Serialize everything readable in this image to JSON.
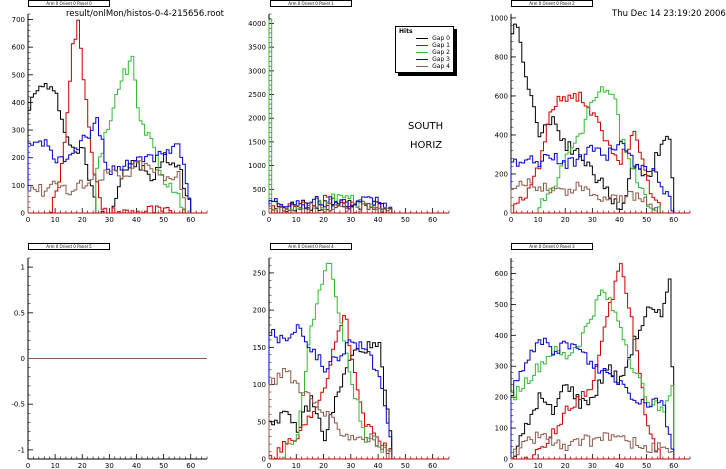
{
  "header": {
    "filename": "result/onlMon/histos-0-4-215656.root",
    "datetime": "Thu Dec 14 23:19:20 2006"
  },
  "colors": {
    "Gap 0": "#000000",
    "Gap 1": "#cc0000",
    "Gap 2": "#33bb33",
    "Gap 3": "#0000cc",
    "Gap 4": "#8b5a4a",
    "axis": "#000000",
    "xaxis_line": "#cc0000"
  },
  "legend": {
    "title": "Hits",
    "entries": [
      "Gap 0",
      "Gap 1",
      "Gap 2",
      "Gap 3",
      "Gap 4"
    ]
  },
  "chart_data": [
    {
      "type": "line",
      "pad_title": "Arm 0 Orient 0 Panel 0",
      "title": "",
      "xlabel": "",
      "ylabel": "",
      "xlim": [
        0,
        66
      ],
      "ylim": [
        0,
        720
      ],
      "xticks": [
        0,
        10,
        20,
        30,
        40,
        50,
        60
      ],
      "yticks": [
        0,
        100,
        200,
        300,
        400,
        500,
        600,
        700
      ],
      "series": [
        {
          "name": "Gap 0",
          "x": [
            0,
            5,
            10,
            15,
            20,
            25,
            30,
            35,
            40,
            45,
            50,
            55,
            60
          ],
          "y": [
            390,
            470,
            420,
            240,
            220,
            0,
            0,
            160,
            180,
            120,
            200,
            170,
            20
          ]
        },
        {
          "name": "Gap 1",
          "x": [
            8,
            12,
            16,
            18,
            20,
            24,
            27,
            30,
            35,
            40,
            45,
            50,
            55,
            60
          ],
          "y": [
            10,
            160,
            600,
            680,
            500,
            150,
            0,
            0,
            0,
            0,
            10,
            0,
            0,
            0
          ]
        },
        {
          "name": "Gap 2",
          "x": [
            25,
            30,
            35,
            38,
            40,
            45,
            50,
            55,
            58,
            60
          ],
          "y": [
            160,
            350,
            500,
            550,
            380,
            250,
            120,
            50,
            20,
            0
          ]
        },
        {
          "name": "Gap 3",
          "x": [
            0,
            5,
            10,
            15,
            20,
            25,
            28,
            30,
            35,
            40,
            45,
            50,
            55,
            60
          ],
          "y": [
            240,
            260,
            200,
            190,
            260,
            340,
            200,
            150,
            160,
            210,
            200,
            220,
            260,
            0
          ]
        },
        {
          "name": "Gap 4",
          "x": [
            0,
            5,
            10,
            15,
            20,
            25,
            30,
            35,
            40,
            45,
            50,
            55,
            58
          ],
          "y": [
            100,
            80,
            120,
            70,
            110,
            130,
            150,
            120,
            180,
            160,
            120,
            150,
            0
          ]
        }
      ]
    },
    {
      "type": "line",
      "pad_title": "Arm 0 Orient 0 Panel 1",
      "title": "",
      "xlabel": "",
      "ylabel": "",
      "xlim": [
        0,
        66
      ],
      "ylim": [
        0,
        4200
      ],
      "xticks": [
        0,
        10,
        20,
        30,
        40,
        50,
        60
      ],
      "yticks": [
        0,
        500,
        1000,
        1500,
        2000,
        2500,
        3000,
        3500,
        4000
      ],
      "annotations": [
        "SOUTH",
        "HORIZ"
      ],
      "series": [
        {
          "name": "Gap 0",
          "x": [
            0,
            5,
            10,
            15,
            20,
            25,
            30,
            35,
            40,
            45
          ],
          "y": [
            150,
            150,
            160,
            140,
            150,
            140,
            160,
            150,
            140,
            0
          ]
        },
        {
          "name": "Gap 1",
          "x": [
            0,
            5,
            10,
            15,
            20,
            25,
            30,
            35,
            40,
            45
          ],
          "y": [
            80,
            90,
            150,
            200,
            250,
            220,
            180,
            140,
            100,
            0
          ]
        },
        {
          "name": "Gap 2",
          "x": [
            0,
            1,
            5,
            10,
            15,
            20,
            25,
            30,
            35,
            40,
            45
          ],
          "y": [
            4100,
            30,
            40,
            60,
            100,
            200,
            330,
            250,
            120,
            60,
            0
          ]
        },
        {
          "name": "Gap 3",
          "x": [
            0,
            5,
            10,
            15,
            20,
            25,
            30,
            35,
            40,
            45
          ],
          "y": [
            220,
            200,
            210,
            220,
            240,
            230,
            220,
            240,
            250,
            0
          ]
        },
        {
          "name": "Gap 4",
          "x": [
            0,
            5,
            10,
            15,
            20,
            25,
            30,
            35,
            40,
            45
          ],
          "y": [
            50,
            60,
            80,
            100,
            120,
            110,
            100,
            90,
            70,
            0
          ]
        }
      ]
    },
    {
      "type": "line",
      "pad_title": "Arm 0 Orient 0 Panel 2",
      "title": "",
      "xlabel": "",
      "ylabel": "",
      "xlim": [
        0,
        66
      ],
      "ylim": [
        0,
        1020
      ],
      "xticks": [
        0,
        10,
        20,
        30,
        40,
        50,
        60
      ],
      "yticks": [
        0,
        200,
        400,
        600,
        800,
        1000
      ],
      "series": [
        {
          "name": "Gap 0",
          "x": [
            0,
            2,
            5,
            10,
            15,
            20,
            25,
            30,
            35,
            40,
            45,
            50,
            55,
            58,
            60
          ],
          "y": [
            900,
            980,
            700,
            420,
            480,
            350,
            300,
            200,
            120,
            0,
            260,
            180,
            350,
            380,
            0
          ]
        },
        {
          "name": "Gap 1",
          "x": [
            0,
            5,
            10,
            15,
            20,
            25,
            30,
            35,
            40,
            45,
            50,
            55
          ],
          "y": [
            10,
            80,
            250,
            550,
            600,
            600,
            500,
            350,
            280,
            400,
            150,
            0
          ]
        },
        {
          "name": "Gap 2",
          "x": [
            10,
            15,
            20,
            25,
            30,
            35,
            38,
            40,
            45,
            50,
            55
          ],
          "y": [
            40,
            120,
            320,
            400,
            600,
            640,
            600,
            400,
            200,
            50,
            0
          ]
        },
        {
          "name": "Gap 3",
          "x": [
            0,
            5,
            10,
            15,
            20,
            25,
            30,
            35,
            40,
            45,
            50,
            55,
            60
          ],
          "y": [
            260,
            280,
            250,
            300,
            250,
            280,
            330,
            300,
            370,
            250,
            240,
            150,
            0
          ]
        },
        {
          "name": "Gap 4",
          "x": [
            0,
            5,
            10,
            15,
            20,
            25,
            30,
            35,
            40,
            45,
            50,
            55
          ],
          "y": [
            110,
            150,
            140,
            130,
            110,
            150,
            90,
            90,
            80,
            90,
            60,
            0
          ]
        }
      ]
    },
    {
      "type": "line",
      "pad_title": "Arm 0 Orient 0 Panel 5",
      "title": "",
      "xlabel": "",
      "ylabel": "",
      "xlim": [
        0,
        66
      ],
      "ylim": [
        -1.1,
        1.1
      ],
      "xticks": [
        0,
        10,
        20,
        30,
        40,
        50,
        60
      ],
      "yticks": [
        -1,
        -0.5,
        0,
        0.5,
        1
      ],
      "series": [
        {
          "name": "Gap 0",
          "x": [
            0,
            66
          ],
          "y": [
            0,
            0
          ]
        },
        {
          "name": "Gap 4",
          "x": [
            0,
            66
          ],
          "y": [
            0,
            0
          ]
        }
      ]
    },
    {
      "type": "line",
      "pad_title": "Arm 0 Orient 0 Panel 4",
      "title": "",
      "xlabel": "",
      "ylabel": "",
      "xlim": [
        0,
        66
      ],
      "ylim": [
        0,
        270
      ],
      "xticks": [
        0,
        10,
        20,
        30,
        40,
        50,
        60
      ],
      "yticks": [
        0,
        50,
        100,
        150,
        200,
        250
      ],
      "series": [
        {
          "name": "Gap 0",
          "x": [
            0,
            5,
            10,
            15,
            20,
            25,
            30,
            35,
            40,
            45
          ],
          "y": [
            50,
            60,
            40,
            80,
            30,
            90,
            140,
            150,
            150,
            0
          ]
        },
        {
          "name": "Gap 1",
          "x": [
            0,
            5,
            10,
            15,
            20,
            25,
            28,
            30,
            35,
            40,
            45
          ],
          "y": [
            0,
            20,
            30,
            60,
            100,
            180,
            190,
            130,
            50,
            30,
            0
          ]
        },
        {
          "name": "Gap 2",
          "x": [
            5,
            10,
            15,
            20,
            22,
            25,
            30,
            35,
            40,
            45
          ],
          "y": [
            10,
            30,
            180,
            250,
            260,
            200,
            100,
            30,
            20,
            0
          ]
        },
        {
          "name": "Gap 3",
          "x": [
            0,
            5,
            10,
            15,
            20,
            25,
            30,
            35,
            40,
            45
          ],
          "y": [
            170,
            160,
            180,
            150,
            120,
            140,
            160,
            150,
            110,
            0
          ]
        },
        {
          "name": "Gap 4",
          "x": [
            0,
            5,
            10,
            15,
            20,
            25,
            30,
            35,
            40,
            45
          ],
          "y": [
            100,
            120,
            100,
            80,
            60,
            40,
            30,
            30,
            20,
            0
          ]
        }
      ]
    },
    {
      "type": "line",
      "pad_title": "Arm 0 Orient 0 Panel 3",
      "title": "",
      "xlabel": "",
      "ylabel": "",
      "xlim": [
        0,
        66
      ],
      "ylim": [
        0,
        650
      ],
      "xticks": [
        0,
        10,
        20,
        30,
        40,
        50,
        60
      ],
      "yticks": [
        0,
        100,
        200,
        300,
        400,
        500,
        600
      ],
      "series": [
        {
          "name": "Gap 0",
          "x": [
            0,
            5,
            10,
            15,
            20,
            25,
            30,
            35,
            40,
            45,
            50,
            55,
            58,
            60
          ],
          "y": [
            0,
            100,
            200,
            150,
            250,
            180,
            200,
            300,
            250,
            380,
            480,
            460,
            600,
            0
          ]
        },
        {
          "name": "Gap 1",
          "x": [
            5,
            10,
            15,
            20,
            25,
            30,
            35,
            38,
            40,
            45,
            50,
            55
          ],
          "y": [
            0,
            20,
            80,
            160,
            200,
            250,
            450,
            560,
            640,
            400,
            100,
            0
          ]
        },
        {
          "name": "Gap 2",
          "x": [
            0,
            5,
            10,
            15,
            20,
            25,
            30,
            33,
            35,
            40,
            45,
            50,
            55,
            60
          ],
          "y": [
            200,
            250,
            300,
            350,
            330,
            380,
            480,
            540,
            520,
            430,
            280,
            200,
            150,
            250
          ]
        },
        {
          "name": "Gap 3",
          "x": [
            0,
            5,
            10,
            15,
            20,
            25,
            30,
            35,
            40,
            45,
            50,
            55,
            60
          ],
          "y": [
            220,
            300,
            400,
            330,
            380,
            350,
            300,
            280,
            250,
            200,
            180,
            200,
            0
          ]
        },
        {
          "name": "Gap 4",
          "x": [
            0,
            5,
            10,
            15,
            20,
            25,
            30,
            35,
            40,
            45,
            50,
            55,
            60
          ],
          "y": [
            10,
            50,
            80,
            60,
            30,
            60,
            60,
            80,
            60,
            50,
            30,
            40,
            0
          ]
        }
      ]
    }
  ]
}
